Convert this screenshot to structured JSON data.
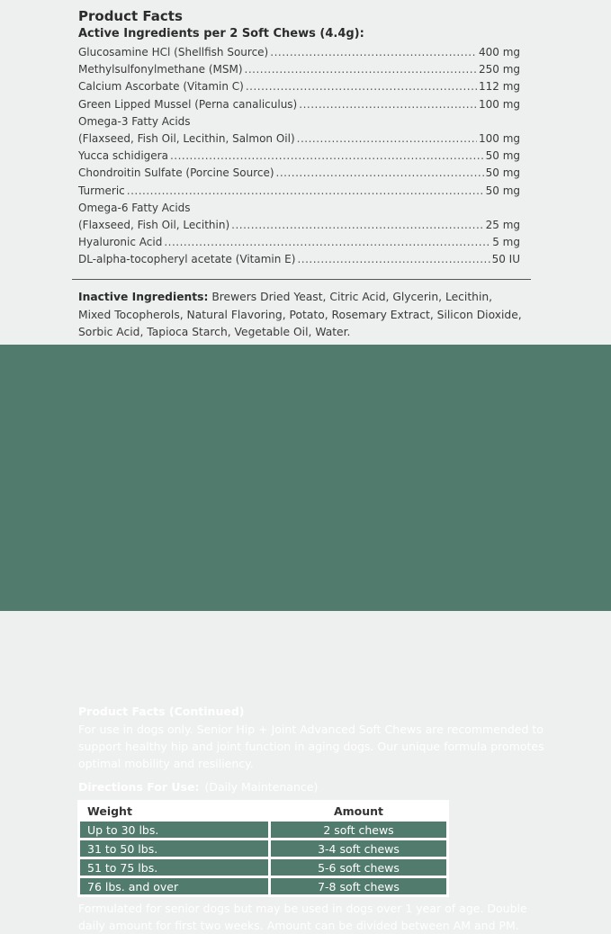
{
  "title": "Product Facts",
  "active_heading": "Active Ingredients per 2 Soft Chews (4.4g):",
  "ingredients": [
    {
      "name": "Glucosamine HCl (Shellfish Source)",
      "amount": "400 mg"
    },
    {
      "name": "Methylsulfonylmethane (MSM)",
      "amount": "250 mg"
    },
    {
      "name": "Calcium Ascorbate (Vitamin C)",
      "amount": "112 mg"
    },
    {
      "name": "Green Lipped Mussel (Perna canaliculus)",
      "amount": "100 mg"
    },
    {
      "name": "Omega-3 Fatty Acids",
      "amount": null
    },
    {
      "name": "(Flaxseed, Fish Oil, Lecithin, Salmon Oil)",
      "amount": "100 mg"
    },
    {
      "name": "Yucca schidigera",
      "amount": "50 mg"
    },
    {
      "name": "Chondroitin Sulfate (Porcine Source)",
      "amount": "50 mg"
    },
    {
      "name": "Turmeric",
      "amount": "50 mg"
    },
    {
      "name": "Omega-6 Fatty Acids",
      "amount": null
    },
    {
      "name": "(Flaxseed, Fish Oil, Lecithin)",
      "amount": "25 mg"
    },
    {
      "name": "Hyaluronic Acid",
      "amount": "5 mg"
    },
    {
      "name": "DL-alpha-tocopheryl acetate (Vitamin E)",
      "amount": "50 IU"
    }
  ],
  "inactive": {
    "label": "Inactive Ingredients:",
    "text": " Brewers Dried Yeast, Citric Acid, Glycerin, Lecithin, Mixed Tocopherols, Natural Flavoring, Potato, Rosemary Extract, Silicon Dioxide, Sorbic Acid, Tapioca Starch, Vegetable Oil, Water."
  },
  "continued": {
    "title": "Product Facts (Continued)",
    "text": "For use in dogs only. Senior Hip + Joint Advanced Soft Chews are recommended to support healthy hip and joint function in aging dogs. Our unique formula promotes optimal mobility and resiliency."
  },
  "directions": {
    "label": "Directions For Use:",
    "note": "(Daily Maintenance)",
    "headers": [
      "Weight",
      "Amount"
    ],
    "rows": [
      [
        "Up to 30 lbs.",
        "2 soft chews"
      ],
      [
        "31 to 50 lbs.",
        "3-4 soft chews"
      ],
      [
        "51 to 75 lbs.",
        "5-6 soft chews"
      ],
      [
        "76 lbs. and over",
        "7-8 soft chews"
      ]
    ]
  },
  "footer": "Formulated for senior dogs but may be used in dogs over 1 year of age. Double daily amount for first two weeks. Amount can be divided between AM and PM.",
  "colors": {
    "background": "#eef0ef",
    "green": "#517b6d"
  }
}
